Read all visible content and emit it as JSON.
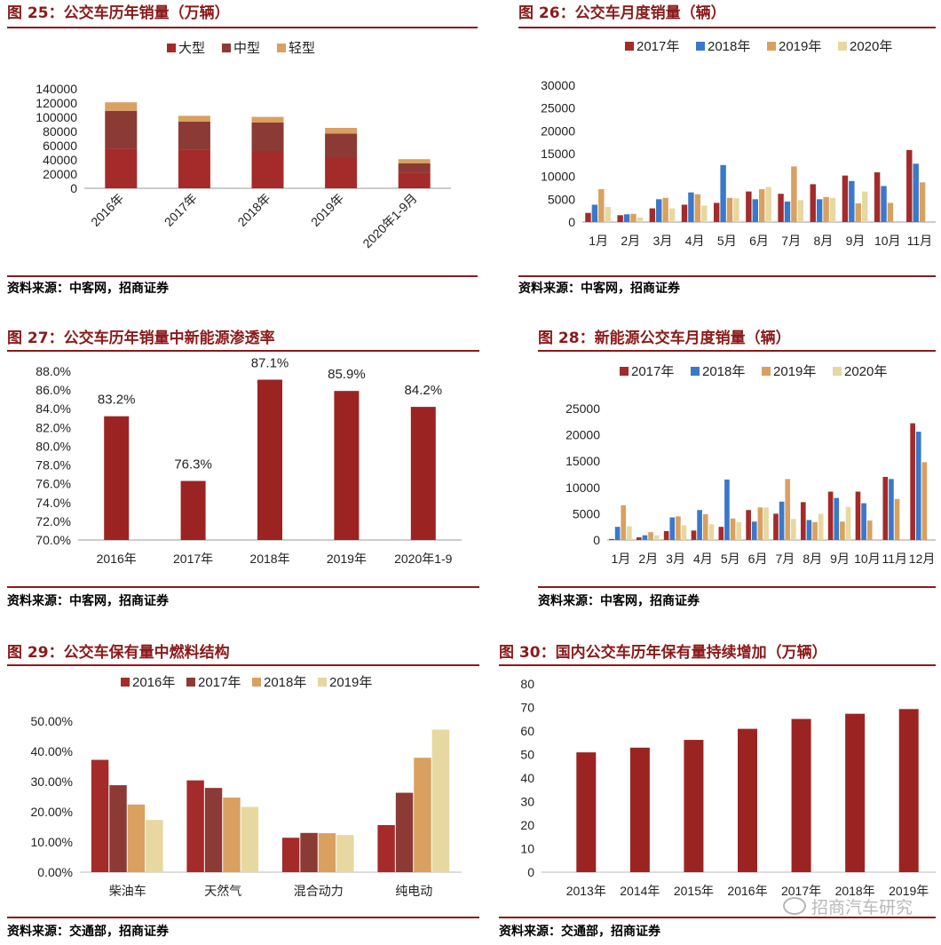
{
  "watermark": "招商汽车研究",
  "charts": [
    {
      "title": "图 25：公交车历年销量（万辆）",
      "source": "资料来源：中客网，招商证券",
      "chart_data": {
        "type": "bar",
        "stacked": true,
        "categories": [
          "2016年",
          "2017年",
          "2018年",
          "2019年",
          "2020年1-9月"
        ],
        "series": [
          {
            "name": "大型",
            "color": "#a52a2a",
            "values": [
              55500,
              54500,
              52500,
              42500,
              22000
            ]
          },
          {
            "name": "中型",
            "color": "#8b3a35",
            "values": [
              53500,
              39500,
              40000,
              34500,
              13000
            ]
          },
          {
            "name": "轻型",
            "color": "#d9a060",
            "values": [
              12000,
              8000,
              8000,
              8000,
              6000
            ]
          }
        ],
        "ylim": [
          0,
          140000
        ],
        "yticks": [
          "0",
          "20000",
          "40000",
          "60000",
          "80000",
          "100000",
          "120000",
          "140000"
        ],
        "legend": "top"
      }
    },
    {
      "title": "图 26：公交车月度销量（辆）",
      "source": "资料来源：中客网，招商证券",
      "chart_data": {
        "type": "bar",
        "categories": [
          "1月",
          "2月",
          "3月",
          "4月",
          "5月",
          "6月",
          "7月",
          "8月",
          "9月",
          "10月",
          "11月"
        ],
        "series": [
          {
            "name": "2017年",
            "color": "#a52a2a",
            "values": [
              2000,
              1500,
              3000,
              3800,
              4200,
              6700,
              6200,
              8300,
              10200,
              10900,
              15800
            ]
          },
          {
            "name": "2018年",
            "color": "#3a78c8",
            "values": [
              3800,
              1700,
              5000,
              6500,
              12500,
              5000,
              4500,
              5000,
              9000,
              7900,
              12800
            ]
          },
          {
            "name": "2019年",
            "color": "#d9a060",
            "values": [
              7200,
              1800,
              5300,
              6100,
              5300,
              7200,
              12200,
              5500,
              4100,
              4200,
              8700
            ]
          },
          {
            "name": "2020年",
            "color": "#e6d8a0",
            "values": [
              3300,
              1000,
              3000,
              3600,
              5200,
              7700,
              4800,
              5300,
              6700,
              null,
              null
            ]
          }
        ],
        "ylim": [
          0,
          30000
        ],
        "yticks": [
          "0",
          "5000",
          "10000",
          "15000",
          "20000",
          "25000",
          "30000"
        ],
        "legend": "top"
      }
    },
    {
      "title": "图 27：公交车历年销量中新能源渗透率",
      "source": "资料来源：中客网，招商证券",
      "chart_data": {
        "type": "bar",
        "categories": [
          "2016年",
          "2017年",
          "2018年",
          "2019年",
          "2020年1-9"
        ],
        "values": [
          83.2,
          76.3,
          87.1,
          85.9,
          84.2
        ],
        "labels": [
          "83.2%",
          "76.3%",
          "87.1%",
          "85.9%",
          "84.2%"
        ],
        "color": "#9b2423",
        "ylim": [
          70,
          88
        ],
        "yticks": [
          "70.0%",
          "72.0%",
          "74.0%",
          "76.0%",
          "78.0%",
          "80.0%",
          "82.0%",
          "84.0%",
          "86.0%",
          "88.0%"
        ]
      }
    },
    {
      "title": "图 28：新能源公交车月度销量（辆）",
      "source": "资料来源：中客网，招商证券",
      "chart_data": {
        "type": "bar",
        "categories": [
          "1月",
          "2月",
          "3月",
          "4月",
          "5月",
          "6月",
          "7月",
          "8月",
          "9月",
          "10月",
          "11月",
          "12月"
        ],
        "series": [
          {
            "name": "2017年",
            "color": "#a52a2a",
            "values": [
              200,
              500,
              1700,
              1800,
              2500,
              5700,
              5000,
              7200,
              9200,
              9200,
              12000,
              22200
            ]
          },
          {
            "name": "2018年",
            "color": "#3a78c8",
            "values": [
              2500,
              900,
              4300,
              5700,
              11500,
              3500,
              7300,
              3800,
              8000,
              7000,
              11600,
              20600
            ]
          },
          {
            "name": "2019年",
            "color": "#d9a060",
            "values": [
              6600,
              1500,
              4500,
              4900,
              4100,
              6200,
              11600,
              3400,
              3500,
              3700,
              7800,
              14800
            ]
          },
          {
            "name": "2020年",
            "color": "#e6d8a0",
            "values": [
              2600,
              900,
              2800,
              3000,
              3400,
              6200,
              4000,
              5000,
              6300,
              null,
              null,
              null
            ]
          }
        ],
        "ylim": [
          0,
          25000
        ],
        "yticks": [
          "0",
          "5000",
          "10000",
          "15000",
          "20000",
          "25000"
        ],
        "legend": "top"
      }
    },
    {
      "title": "图 29：公交车保有量中燃料结构",
      "source": "资料来源：交通部，招商证券",
      "chart_data": {
        "type": "bar",
        "categories": [
          "柴油车",
          "天然气",
          "混合动力",
          "纯电动"
        ],
        "series": [
          {
            "name": "2016年",
            "color": "#a52a2a",
            "values": [
              37.2,
              30.4,
              11.4,
              15.6
            ]
          },
          {
            "name": "2017年",
            "color": "#8b3a35",
            "values": [
              28.8,
              27.9,
              13.0,
              26.3
            ]
          },
          {
            "name": "2018年",
            "color": "#d9a060",
            "values": [
              22.4,
              24.7,
              12.9,
              37.9
            ]
          },
          {
            "name": "2019年",
            "color": "#e6d8a0",
            "values": [
              17.3,
              21.6,
              12.3,
              47.2
            ]
          }
        ],
        "ylim": [
          0,
          50
        ],
        "yticks": [
          "0.00%",
          "10.00%",
          "20.00%",
          "30.00%",
          "40.00%",
          "50.00%"
        ],
        "legend": "top"
      }
    },
    {
      "title": "图 30：国内公交车历年保有量持续增加（万辆）",
      "source": "资料来源：交通部，招商证券",
      "chart_data": {
        "type": "bar",
        "categories": [
          "2013年",
          "2014年",
          "2015年",
          "2016年",
          "2017年",
          "2018年",
          "2019年"
        ],
        "values": [
          50.9,
          52.9,
          56.2,
          60.9,
          65.1,
          67.3,
          69.3
        ],
        "color": "#9b2423",
        "ylim": [
          0,
          80
        ],
        "yticks": [
          "0",
          "10",
          "20",
          "30",
          "40",
          "50",
          "60",
          "70",
          "80"
        ]
      }
    }
  ]
}
